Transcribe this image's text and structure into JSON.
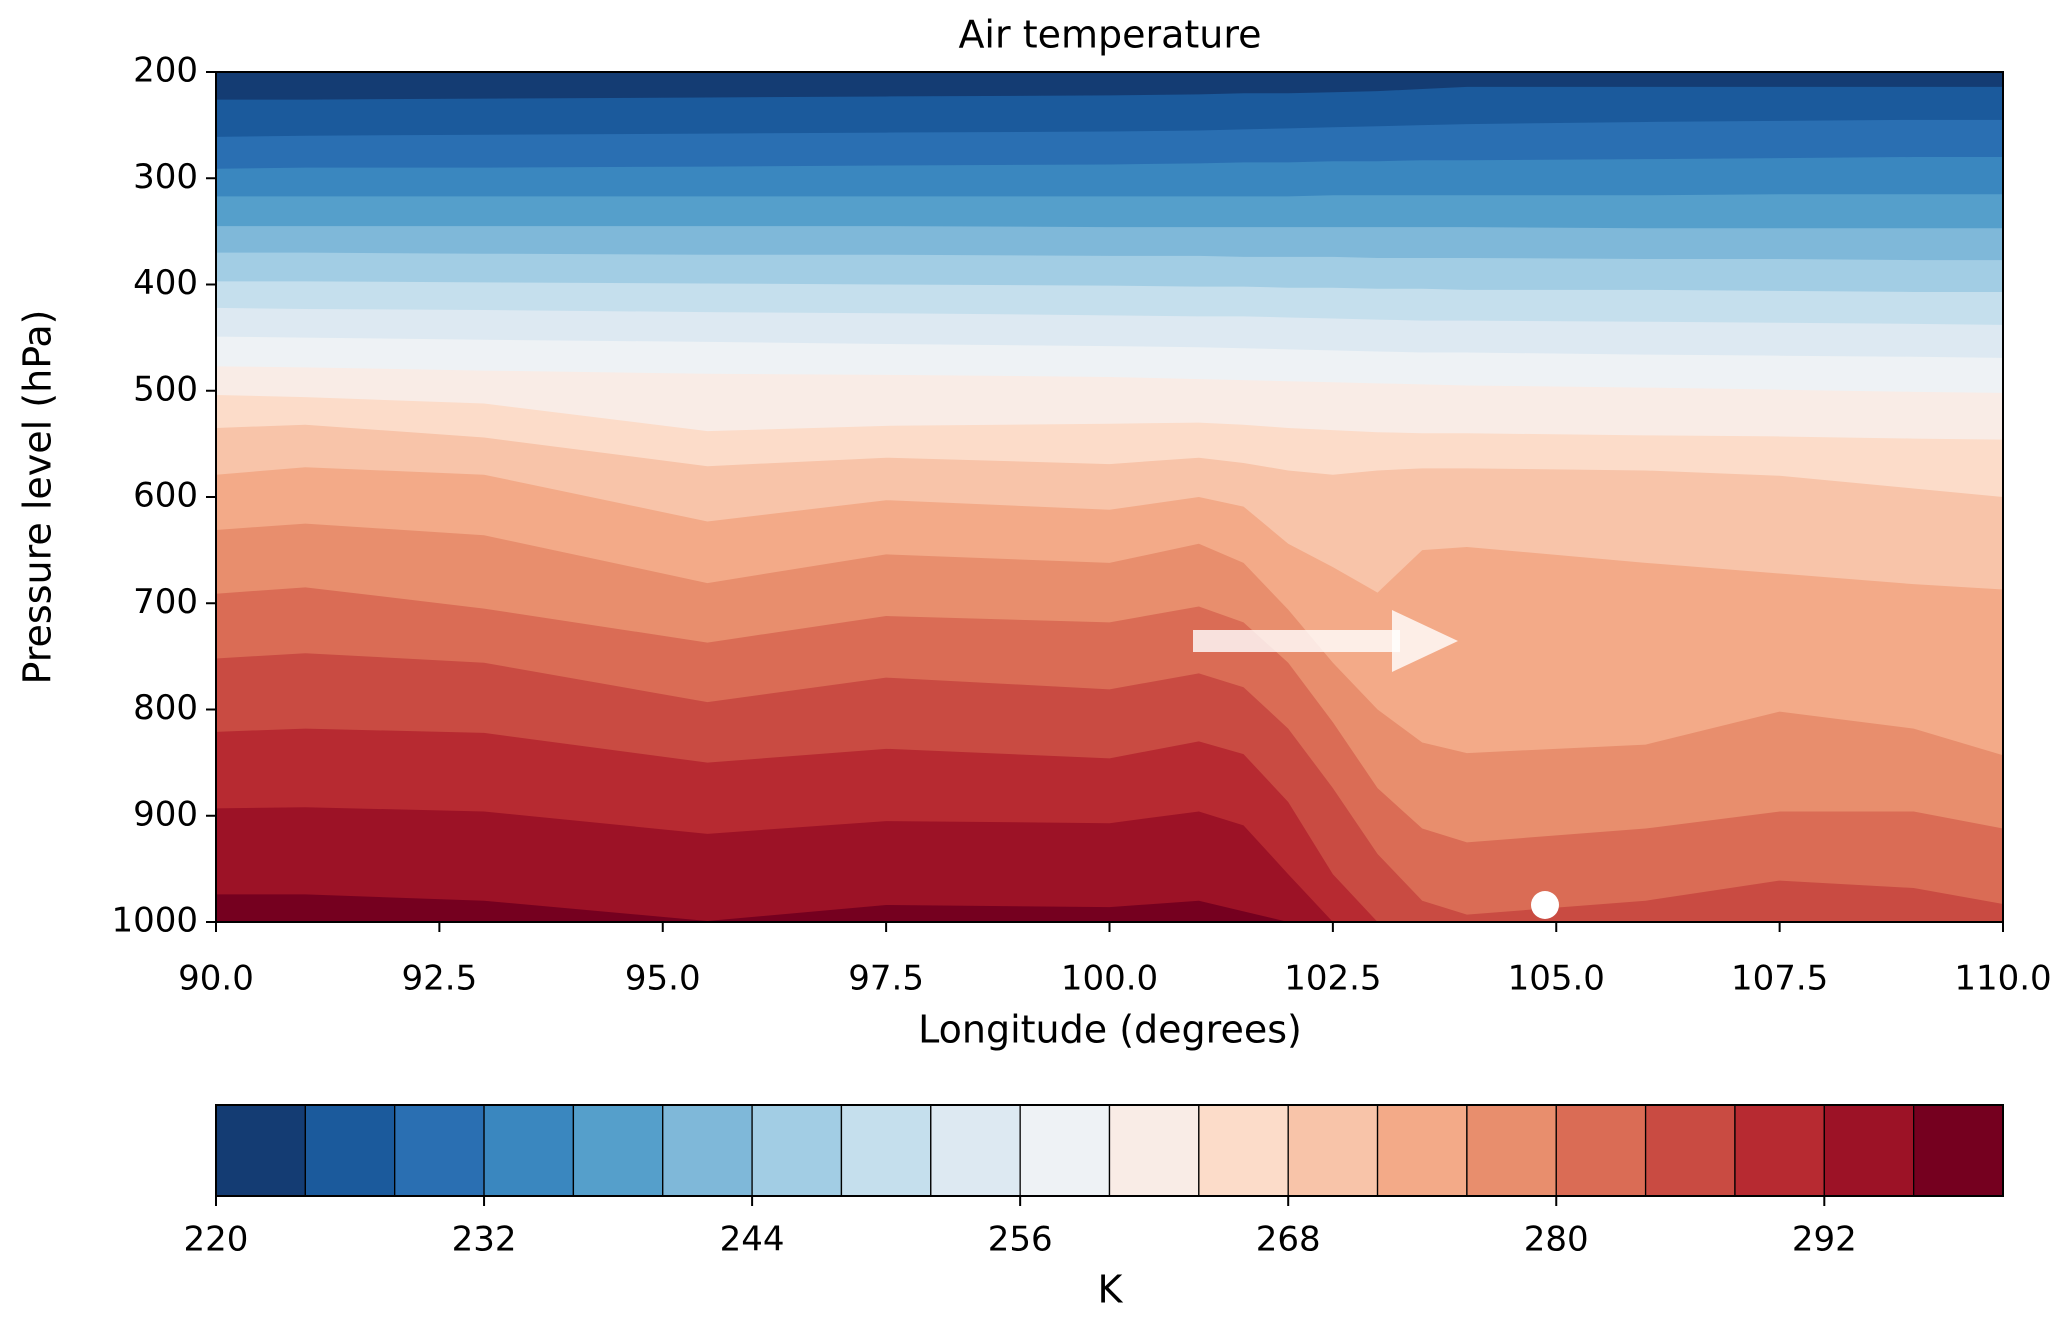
{
  "chart_data": {
    "type": "contourf",
    "title": "Air temperature",
    "xlabel": "Longitude  (degrees)",
    "ylabel": "Pressure level  (hPa)",
    "xlim": [
      90,
      110
    ],
    "xticks": [
      {
        "value": 90,
        "label": "90.0"
      },
      92.5,
      {
        "value": 95,
        "label": "95.0"
      },
      97.5,
      {
        "value": 100,
        "label": "100.0"
      },
      102.5,
      {
        "value": 105,
        "label": "105.0"
      },
      107.5,
      {
        "value": 110,
        "label": "110.0"
      }
    ],
    "ylim": [
      1000,
      200
    ],
    "yticks": [
      200,
      300,
      400,
      500,
      600,
      700,
      800,
      900,
      1000
    ],
    "x": [
      90,
      91,
      93,
      95.5,
      97.5,
      100,
      101,
      101.5,
      102,
      102.5,
      103,
      103.5,
      104,
      106,
      107.5,
      109,
      110
    ],
    "boundaries": [
      [
        226,
        226,
        225,
        224,
        223,
        222,
        221,
        220,
        220,
        219,
        218,
        216,
        214,
        214,
        214,
        214,
        214
      ],
      [
        261,
        260,
        259,
        258,
        257,
        256,
        255,
        254,
        253,
        252,
        251,
        250,
        249,
        247,
        246,
        245,
        245
      ],
      [
        291,
        290,
        290,
        289,
        288,
        287,
        286,
        285,
        285,
        284,
        284,
        283,
        283,
        282,
        281,
        280,
        280
      ],
      [
        317,
        317,
        317,
        317,
        317,
        317,
        317,
        317,
        317,
        316,
        316,
        316,
        316,
        316,
        315,
        315,
        315
      ],
      [
        345,
        345,
        345,
        345,
        345,
        346,
        346,
        346,
        346,
        346,
        346,
        346,
        346,
        347,
        347,
        347,
        347
      ],
      [
        370,
        370,
        371,
        372,
        372,
        373,
        373,
        374,
        374,
        374,
        375,
        375,
        375,
        376,
        376,
        377,
        377
      ],
      [
        397,
        397,
        398,
        399,
        400,
        401,
        402,
        402,
        403,
        403,
        404,
        404,
        405,
        405,
        406,
        407,
        407
      ],
      [
        422,
        423,
        424,
        426,
        427,
        429,
        430,
        430,
        431,
        432,
        433,
        434,
        434,
        435,
        436,
        437,
        438
      ],
      [
        449,
        450,
        452,
        454,
        456,
        458,
        459,
        460,
        461,
        462,
        463,
        464,
        464,
        466,
        467,
        468,
        469
      ],
      [
        477,
        478,
        481,
        484,
        485,
        487,
        489,
        490,
        491,
        492,
        493,
        494,
        495,
        497,
        499,
        501,
        502
      ],
      [
        504,
        506,
        512,
        538,
        533,
        531,
        530,
        532,
        535,
        537,
        539,
        540,
        540,
        542,
        543,
        545,
        546
      ],
      [
        535,
        532,
        544,
        571,
        563,
        569,
        563,
        568,
        575,
        579,
        575,
        573,
        573,
        575,
        580,
        592,
        600
      ],
      [
        579,
        572,
        579,
        623,
        603,
        612,
        600,
        609,
        644,
        666,
        690,
        650,
        647,
        662,
        672,
        682,
        687
      ],
      [
        631,
        625,
        636,
        681,
        654,
        662,
        644,
        662,
        706,
        756,
        800,
        831,
        841,
        833,
        802,
        818,
        843
      ],
      [
        691,
        685,
        705,
        737,
        712,
        718,
        703,
        718,
        756,
        812,
        874,
        912,
        925,
        912,
        896,
        896,
        912
      ],
      [
        752,
        747,
        756,
        793,
        770,
        781,
        766,
        779,
        818,
        874,
        936,
        980,
        993,
        980,
        961,
        968,
        983
      ],
      [
        821,
        818,
        822,
        850,
        837,
        846,
        830,
        842,
        887,
        955,
        1000,
        1000,
        1000,
        1000,
        1000,
        1000,
        1000
      ],
      [
        893,
        892,
        896,
        917,
        905,
        907,
        896,
        909,
        955,
        1000,
        1000,
        1000,
        1000,
        1000,
        1000,
        1000,
        1000
      ],
      [
        974,
        974,
        980,
        999,
        984,
        986,
        980,
        990,
        1000,
        1000,
        1000,
        1000,
        1000,
        1000,
        1000,
        1000,
        1000
      ]
    ],
    "colors": [
      "#143c73",
      "#1b5a9c",
      "#2a6fb2",
      "#3a87bf",
      "#559fcb",
      "#7fb8d9",
      "#a2cde4",
      "#c5dfed",
      "#dde9f2",
      "#eef2f5",
      "#f9ece6",
      "#fcdcc9",
      "#f8c4a9",
      "#f3aa88",
      "#e88e6d",
      "#da6c55",
      "#c94b42",
      "#b72a31",
      "#9c1226",
      "#75001f"
    ],
    "colorbar": {
      "label": "K",
      "levels": [
        220,
        224,
        228,
        232,
        236,
        240,
        244,
        248,
        252,
        256,
        260,
        264,
        268,
        272,
        276,
        280,
        284,
        288,
        292,
        296,
        300
      ],
      "ticks": [
        220,
        232,
        244,
        256,
        268,
        280,
        292
      ]
    }
  }
}
